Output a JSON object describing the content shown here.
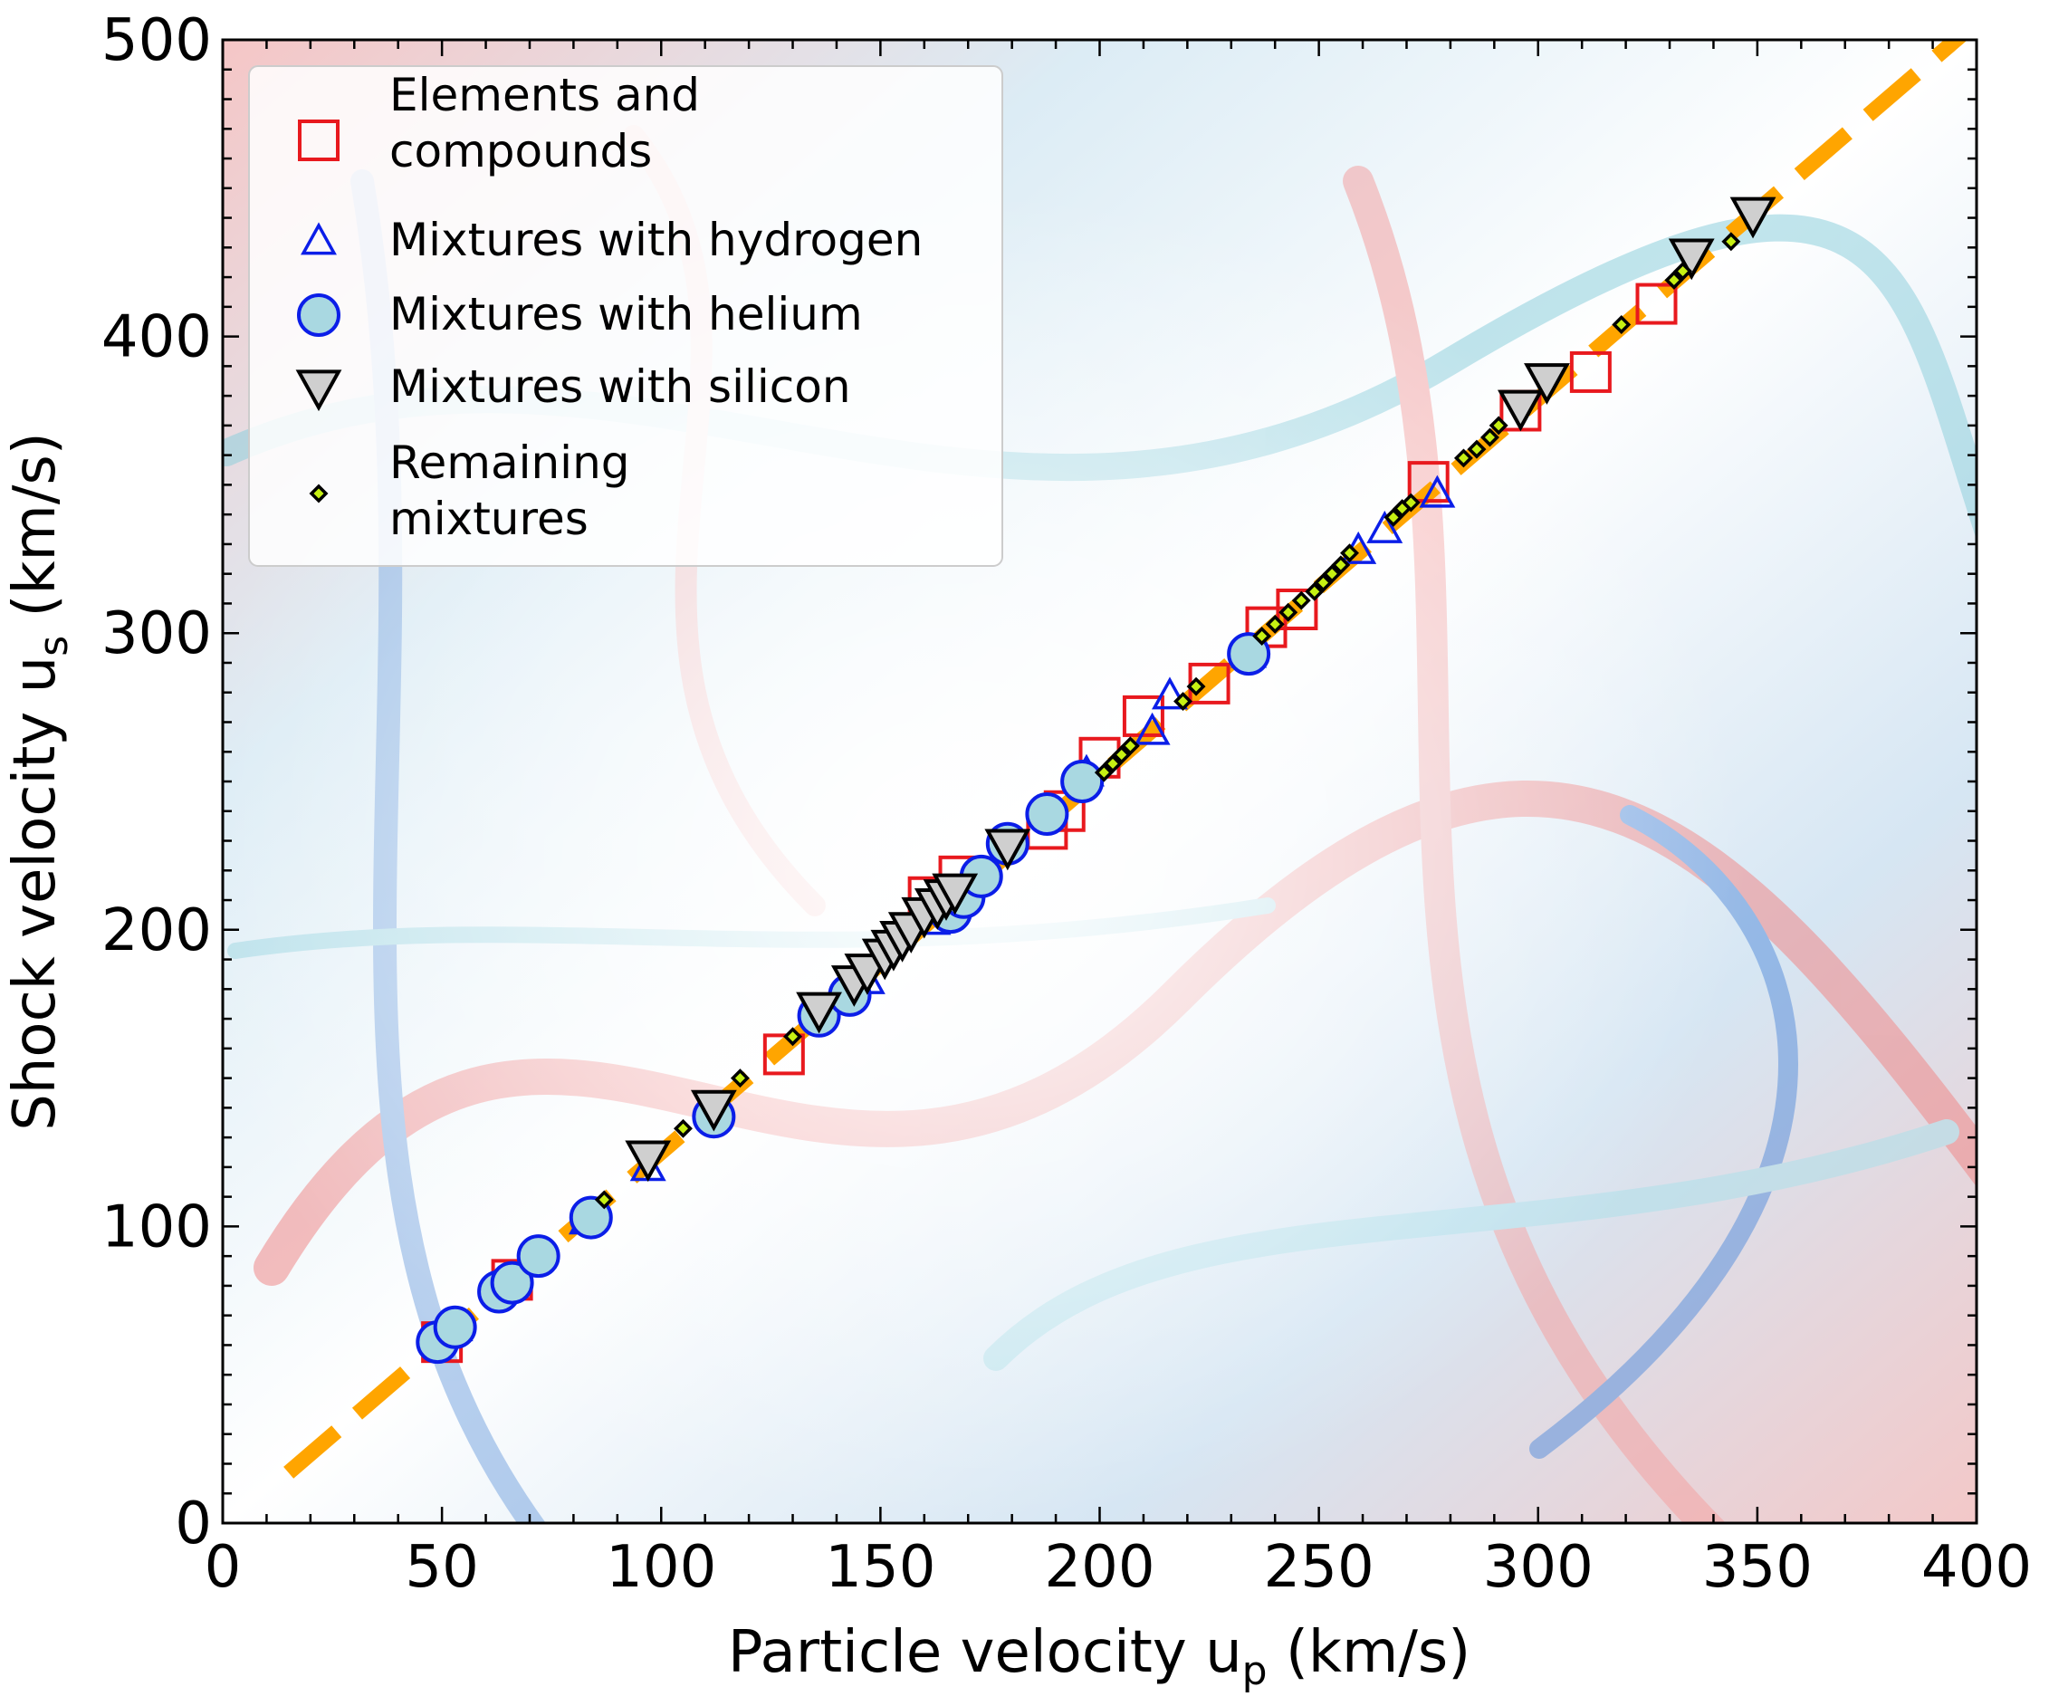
{
  "chart_data": {
    "type": "scatter",
    "xlabel": "Particle velocity u",
    "xlabel_sub": "p",
    "xlabel_unit": " (km/s)",
    "ylabel": "Shock velocity u",
    "ylabel_sub": "s",
    "ylabel_unit": " (km/s)",
    "xlim": [
      0,
      400
    ],
    "ylim": [
      0,
      500
    ],
    "xticks": [
      0,
      50,
      100,
      150,
      200,
      250,
      300,
      350,
      400
    ],
    "yticks": [
      0,
      100,
      200,
      300,
      400,
      500
    ],
    "xtick_labels": [
      "0",
      "50",
      "100",
      "150",
      "200",
      "250",
      "300",
      "350",
      "400"
    ],
    "ytick_labels": [
      "0",
      "100",
      "200",
      "300",
      "400",
      "500"
    ],
    "grid": false,
    "legend_position": "top-left",
    "fit_line": {
      "color": "#FFA500",
      "style": "dashed",
      "x": [
        15,
        400
      ],
      "y": [
        17,
        506
      ]
    },
    "series": [
      {
        "name": "Elements and compounds",
        "legend_lines": [
          "Elements and",
          "compounds"
        ],
        "marker": "square",
        "color": "#e8191e",
        "x": [
          50,
          66,
          128,
          161,
          168,
          188,
          192,
          200,
          210,
          225,
          238,
          245,
          275,
          296,
          312,
          327
        ],
        "y": [
          61,
          82,
          158,
          211,
          218,
          234,
          240,
          258,
          272,
          283,
          302,
          308,
          351,
          375,
          388,
          411
        ]
      },
      {
        "name": "Mixtures with hydrogen",
        "legend_lines": [
          "Mixtures with hydrogen"
        ],
        "marker": "triangle-up",
        "color": "#0b1ee8",
        "x": [
          53,
          83,
          97,
          147,
          162,
          197,
          212,
          216,
          234,
          259,
          265,
          277
        ],
        "y": [
          66,
          102,
          120,
          183,
          203,
          253,
          267,
          279,
          293,
          328,
          335,
          347
        ]
      },
      {
        "name": "Mixtures with helium",
        "legend_lines": [
          "Mixtures with helium"
        ],
        "marker": "circle",
        "color": "#0b1ee8",
        "fill": "#a9d8e1",
        "x": [
          49,
          53,
          63,
          66,
          72,
          84,
          112,
          136,
          143,
          166,
          169,
          173,
          179,
          188,
          196,
          234
        ],
        "y": [
          61,
          66,
          78,
          81,
          90,
          103,
          137,
          171,
          178,
          206,
          211,
          218,
          229,
          239,
          250,
          293
        ]
      },
      {
        "name": "Mixtures with silicon",
        "legend_lines": [
          "Mixtures with silicon"
        ],
        "marker": "triangle-down",
        "color": "#000000",
        "fill": "#cfcfcf",
        "x": [
          97,
          112,
          136,
          144,
          147,
          151,
          153,
          155,
          157,
          160,
          163,
          165,
          167,
          179,
          296,
          302,
          335,
          349
        ],
        "y": [
          123,
          140,
          173,
          182,
          186,
          191,
          194,
          197,
          200,
          205,
          208,
          211,
          213,
          228,
          376,
          385,
          427,
          441
        ]
      },
      {
        "name": "Remaining mixtures",
        "legend_lines": [
          "Remaining",
          "mixtures"
        ],
        "marker": "diamond",
        "color": "#000000",
        "fill": "#c6f013",
        "x": [
          87,
          105,
          118,
          130,
          201,
          203,
          205,
          207,
          219,
          222,
          237,
          240,
          243,
          246,
          249,
          251,
          253,
          255,
          257,
          267,
          269,
          271,
          283,
          286,
          289,
          291,
          319,
          331,
          333,
          344
        ],
        "y": [
          109,
          133,
          150,
          164,
          253,
          256,
          259,
          262,
          277,
          282,
          299,
          303,
          307,
          311,
          314,
          317,
          320,
          323,
          327,
          339,
          342,
          344,
          359,
          362,
          366,
          370,
          404,
          419,
          422,
          432
        ]
      }
    ]
  }
}
